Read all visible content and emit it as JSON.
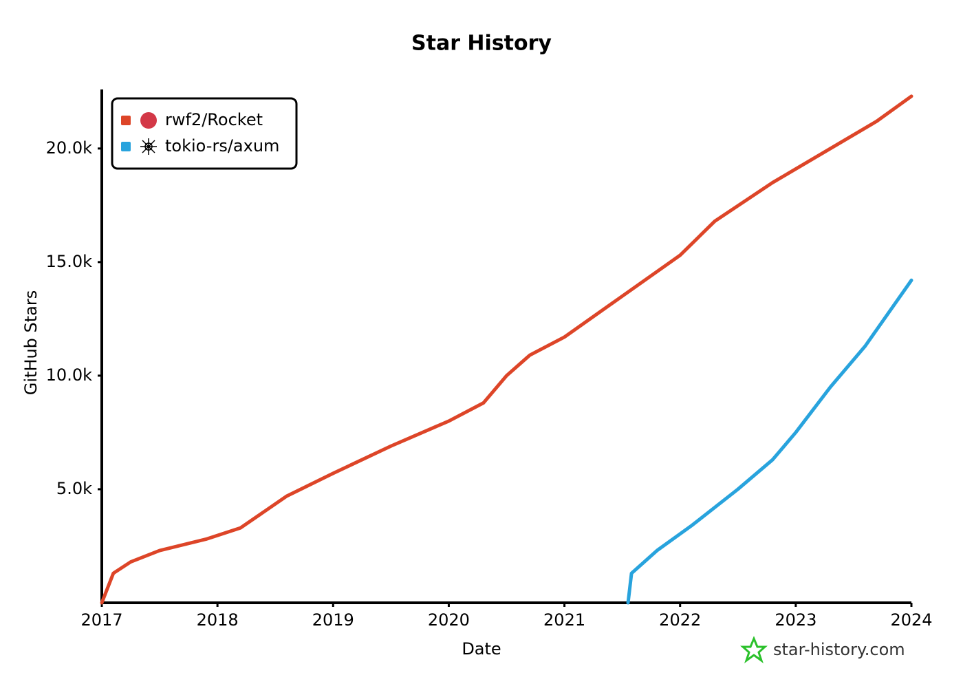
{
  "chart_data": {
    "type": "line",
    "title": "Star History",
    "x_label": "Date",
    "y_label": "GitHub Stars",
    "series": [
      {
        "name": "rwf2/Rocket",
        "color": "#dd4528",
        "x": [
          2017.0,
          2017.1,
          2017.25,
          2017.5,
          2017.9,
          2018.2,
          2018.6,
          2019.0,
          2019.5,
          2020.0,
          2020.3,
          2020.5,
          2020.7,
          2021.0,
          2021.5,
          2022.0,
          2022.3,
          2022.8,
          2023.3,
          2023.7,
          2024.0
        ],
        "values": [
          0,
          1300,
          1800,
          2300,
          2800,
          3300,
          4700,
          5700,
          6900,
          8000,
          8800,
          10000,
          10900,
          11700,
          13500,
          15300,
          16800,
          18500,
          20000,
          21200,
          22300
        ]
      },
      {
        "name": "tokio-rs/axum",
        "color": "#28a3dd",
        "x": [
          2021.55,
          2021.58,
          2021.8,
          2022.1,
          2022.5,
          2022.8,
          2023.0,
          2023.3,
          2023.6,
          2024.0
        ],
        "values": [
          0,
          1300,
          2300,
          3400,
          5000,
          6300,
          7500,
          9500,
          11300,
          14200
        ]
      }
    ],
    "xlim": [
      2017,
      2024
    ],
    "xticks": [
      2017,
      2018,
      2019,
      2020,
      2021,
      2022,
      2023,
      2024
    ],
    "ylim": [
      0,
      22600
    ],
    "yticks": [
      {
        "value": 5000,
        "label": "5.0k"
      },
      {
        "value": 10000,
        "label": "10.0k"
      },
      {
        "value": 15000,
        "label": "15.0k"
      },
      {
        "value": 20000,
        "label": "20.0k"
      }
    ],
    "legend": "upper-left",
    "watermark": "star-history.com"
  }
}
